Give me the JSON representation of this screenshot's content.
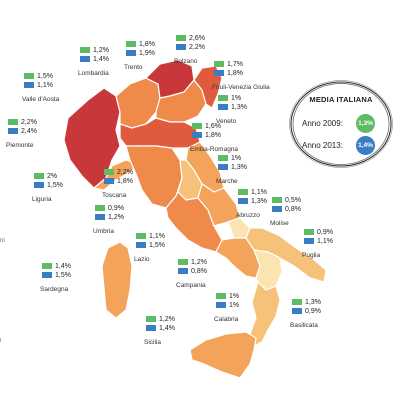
{
  "colors": {
    "anno_2009": "#5dbb63",
    "anno_2013": "#3b7dc4",
    "map_dark_red": "#c8383a",
    "map_red": "#e05a3d",
    "map_orange": "#ef8a4a",
    "map_light_orange": "#f3a35a",
    "map_peach": "#f6c27a",
    "map_pale": "#fbe4b0",
    "outline": "#ffffff"
  },
  "legend": {
    "title": "MEDIA ITALIANA",
    "rows": [
      {
        "label": "Anno 2009:",
        "value": "1,3%"
      },
      {
        "label": "Anno 2013:",
        "value": "1,4%"
      }
    ]
  },
  "edge_fragments": [
    "ni",
    "i"
  ],
  "regions": [
    {
      "name": "Lombardia",
      "v2009": "1,2%",
      "v2013": "1,4%",
      "fill": "2009 and 2013 levels"
    },
    {
      "name": "Trento",
      "v2009": "1,8%",
      "v2013": "1,9%"
    },
    {
      "name": "Bolzano",
      "v2009": "2,6%",
      "v2013": "2,2%"
    },
    {
      "name": "Valle d'Aosta",
      "v2009": "1,5%",
      "v2013": "1,1%"
    },
    {
      "name": "Friuli-Venezia Giulia",
      "v2009": "1,7%",
      "v2013": "1,8%"
    },
    {
      "name": "Veneto",
      "v2009": "1%",
      "v2013": "1,3%"
    },
    {
      "name": "Piemonte",
      "v2009": "2,2%",
      "v2013": "2,4%"
    },
    {
      "name": "Emilia-Romagna",
      "v2009": "1,6%",
      "v2013": "1,8%"
    },
    {
      "name": "Liguria",
      "v2009": "2%",
      "v2013": "1,5%"
    },
    {
      "name": "Toscana",
      "v2009": "2,2%",
      "v2013": "1,8%"
    },
    {
      "name": "Marche",
      "v2009": "1%",
      "v2013": "1,3%"
    },
    {
      "name": "Umbria",
      "v2009": "0,9%",
      "v2013": "1,2%"
    },
    {
      "name": "Abruzzo",
      "v2009": "1,1%",
      "v2013": "1,3%"
    },
    {
      "name": "Molise",
      "v2009": "0,5%",
      "v2013": "0,8%"
    },
    {
      "name": "Lazio",
      "v2009": "1,1%",
      "v2013": "1,5%"
    },
    {
      "name": "Puglia",
      "v2009": "0,9%",
      "v2013": "1,1%"
    },
    {
      "name": "Sardegna",
      "v2009": "1,4%",
      "v2013": "1,5%"
    },
    {
      "name": "Campania",
      "v2009": "1,2%",
      "v2013": "0,8%"
    },
    {
      "name": "Basilicata",
      "v2009": "1,3%",
      "v2013": "0,9%"
    },
    {
      "name": "Calabria",
      "v2009": "1%",
      "v2013": "1%"
    },
    {
      "name": "Sicilia",
      "v2009": "1,2%",
      "v2013": "1,4%"
    }
  ]
}
